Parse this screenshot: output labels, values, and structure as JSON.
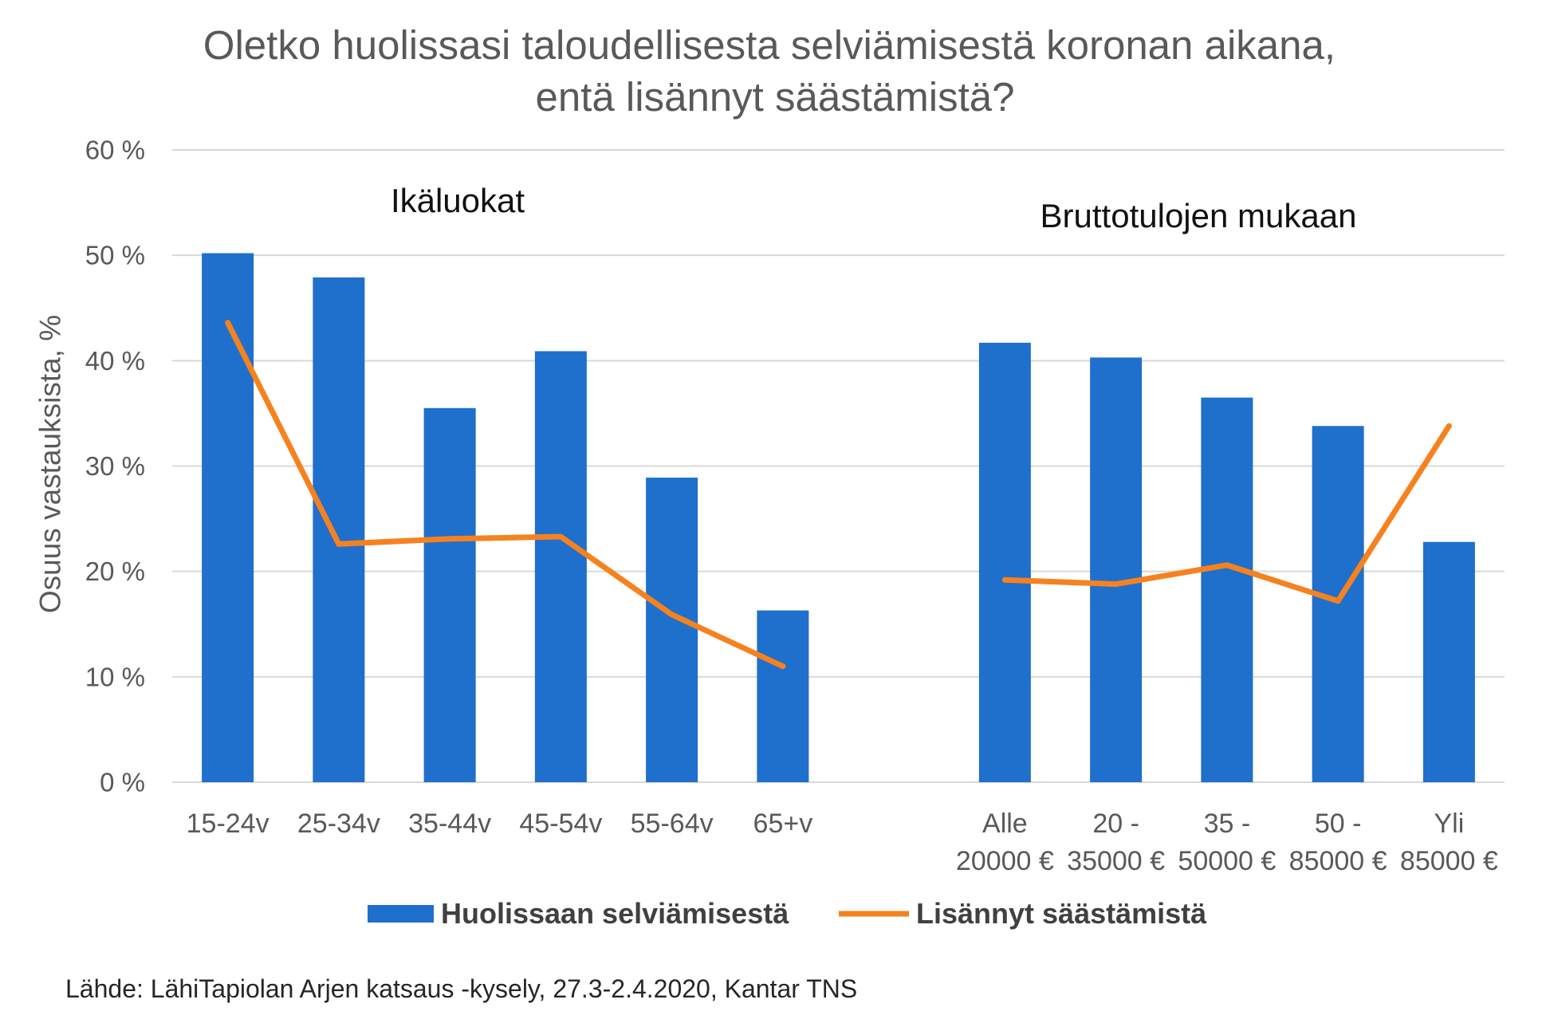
{
  "colors": {
    "bar": "#1F6FCD",
    "line": "#F5821F",
    "grid": "#D9D9D9"
  },
  "chart_data": {
    "type": "bar",
    "title": [
      "Oletko huolissasi taloudellisesta selviämisestä koronan aikana,",
      "entä lisännyt säästämistä?"
    ],
    "ylabel": "Osuus vastauksista, %",
    "ylim": [
      0,
      60
    ],
    "yticks": [
      0,
      10,
      20,
      30,
      40,
      50,
      60
    ],
    "ytick_labels": [
      "0 %",
      "10 %",
      "20 %",
      "30 %",
      "40 %",
      "50 %",
      "60 %"
    ],
    "grid": true,
    "legend_position": "bottom",
    "groups": [
      {
        "label": "Ikäluokat",
        "categories": [
          "15-24v",
          "25-34v",
          "35-44v",
          "45-54v",
          "55-64v",
          "65+v"
        ]
      },
      {
        "label": "Bruttotulojen mukaan",
        "categories": [
          "Alle\n20000 €",
          "20 -\n35000 €",
          "35 -\n50000 €",
          "50 -\n85000 €",
          "Yli\n85000 €"
        ]
      }
    ],
    "series": [
      {
        "name": "Huolissaan selviämisestä",
        "type": "bar",
        "values": [
          [
            50.2,
            47.9,
            35.5,
            40.9,
            28.9,
            16.3
          ],
          [
            41.7,
            40.3,
            36.5,
            33.8,
            22.8
          ]
        ]
      },
      {
        "name": "Lisännyt säästämistä",
        "type": "line",
        "values": [
          [
            43.6,
            22.6,
            23.1,
            23.3,
            15.9,
            11.0
          ],
          [
            19.2,
            18.8,
            20.6,
            17.2,
            33.8
          ]
        ]
      }
    ],
    "source": "Lähde: LähiTapiolan Arjen katsaus -kysely, 27.3-2.4.2020, Kantar TNS"
  }
}
